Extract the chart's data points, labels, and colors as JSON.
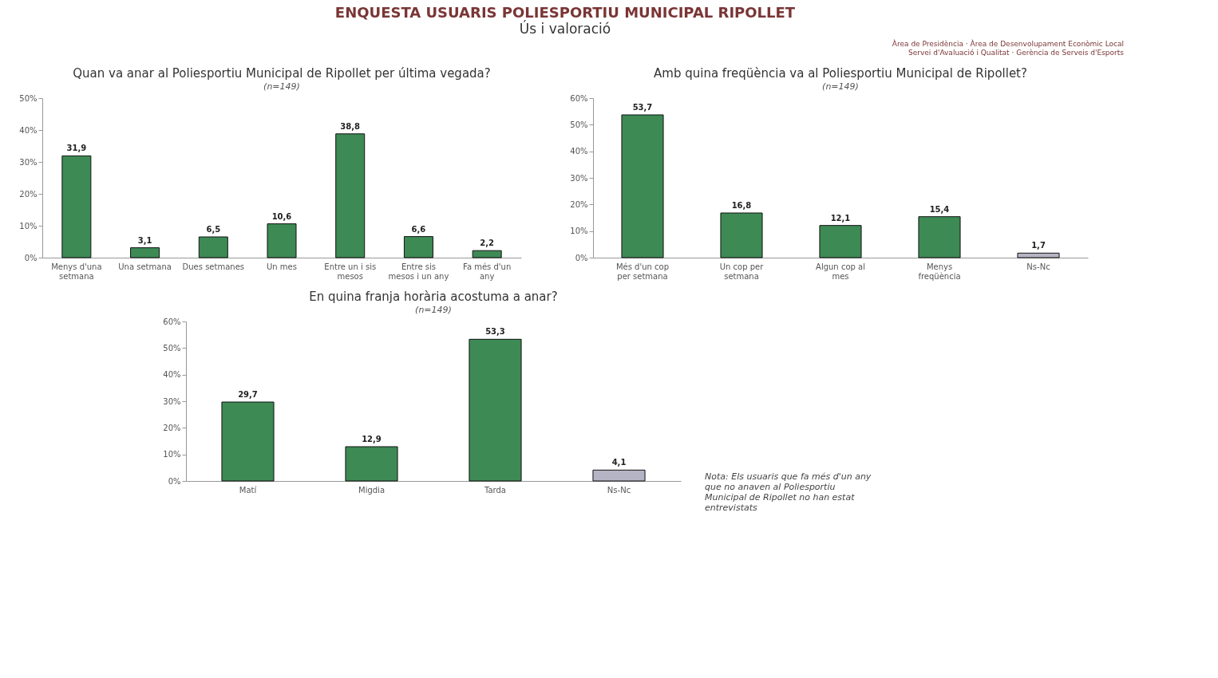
{
  "chart_data": [
    {
      "type": "other",
      "title": "ENQUESTA USUARIS POLIESPORTIU MUNICIPAL RIPOLLET",
      "subtitle": "Ús i valoració",
      "annotations": [
        "Àrea de Presidència · Àrea de Desenvolupament Econòmic Local",
        "Servei d'Avaluació i Qualitat · Gerència de Serveis d'Esports"
      ]
    },
    {
      "type": "bar",
      "title": "Quan va anar al Poliesportiu Municipal de Ripollet per última vegada?",
      "subtitle": "(n=149)",
      "categories": [
        "Menys d'una setmana",
        "Una setmana",
        "Dues setmanes",
        "Un mes",
        "Entre un i sis mesos",
        "Entre sis mesos i un any",
        "Fa més d'un any"
      ],
      "values": [
        31.9,
        3.1,
        6.5,
        10.6,
        38.8,
        6.6,
        2.2
      ],
      "colors": [
        "#3d8a55",
        "#3d8a55",
        "#3d8a55",
        "#3d8a55",
        "#3d8a55",
        "#3d8a55",
        "#3d8a55"
      ],
      "value_labels": [
        "31,9",
        "3,1",
        "6,5",
        "10,6",
        "38,8",
        "6,6",
        "2,2"
      ],
      "ylim": [
        0,
        50
      ],
      "yticks": [
        {
          "value": 0,
          "label": "0%"
        },
        {
          "value": 10,
          "label": "10%"
        },
        {
          "value": 20,
          "label": "20%"
        },
        {
          "value": 30,
          "label": "30%"
        },
        {
          "value": 40,
          "label": "40%"
        },
        {
          "value": 50,
          "label": "50%"
        }
      ]
    },
    {
      "type": "bar",
      "title": "Amb quina freqüència va al Poliesportiu Municipal de Ripollet?",
      "subtitle": "(n=149)",
      "categories": [
        "Més d'un cop per setmana",
        "Un cop per setmana",
        "Algun cop al mes",
        "Menys freqüència",
        "Ns-Nc"
      ],
      "values": [
        53.7,
        16.8,
        12.1,
        15.4,
        1.7
      ],
      "colors": [
        "#3d8a55",
        "#3d8a55",
        "#3d8a55",
        "#3d8a55",
        "#b4b4c4"
      ],
      "value_labels": [
        "53,7",
        "16,8",
        "12,1",
        "15,4",
        "1,7"
      ],
      "ylim": [
        0,
        60
      ],
      "yticks": [
        {
          "value": 0,
          "label": "0%"
        },
        {
          "value": 10,
          "label": "10%"
        },
        {
          "value": 20,
          "label": "20%"
        },
        {
          "value": 30,
          "label": "30%"
        },
        {
          "value": 40,
          "label": "40%"
        },
        {
          "value": 50,
          "label": "50%"
        },
        {
          "value": 60,
          "label": "60%"
        }
      ]
    },
    {
      "type": "bar",
      "title": "En quina franja horària acostuma a anar?",
      "subtitle": "(n=149)",
      "categories": [
        "Matí",
        "Migdia",
        "Tarda",
        "Ns-Nc"
      ],
      "values": [
        29.7,
        12.9,
        53.3,
        4.1
      ],
      "colors": [
        "#3d8a55",
        "#3d8a55",
        "#3d8a55",
        "#b4b4c4"
      ],
      "value_labels": [
        "29,7",
        "12,9",
        "53,3",
        "4,1"
      ],
      "ylim": [
        0,
        60
      ],
      "yticks": [
        {
          "value": 0,
          "label": "0%"
        },
        {
          "value": 10,
          "label": "10%"
        },
        {
          "value": 20,
          "label": "20%"
        },
        {
          "value": 30,
          "label": "30%"
        },
        {
          "value": 40,
          "label": "40%"
        },
        {
          "value": 50,
          "label": "50%"
        },
        {
          "value": 60,
          "label": "60%"
        }
      ],
      "annotations": [
        "Nota: Els usuaris que fa més d'un any que no anaven al Poliesportiu Municipal de Ripollet no han estat entrevistats"
      ]
    }
  ]
}
